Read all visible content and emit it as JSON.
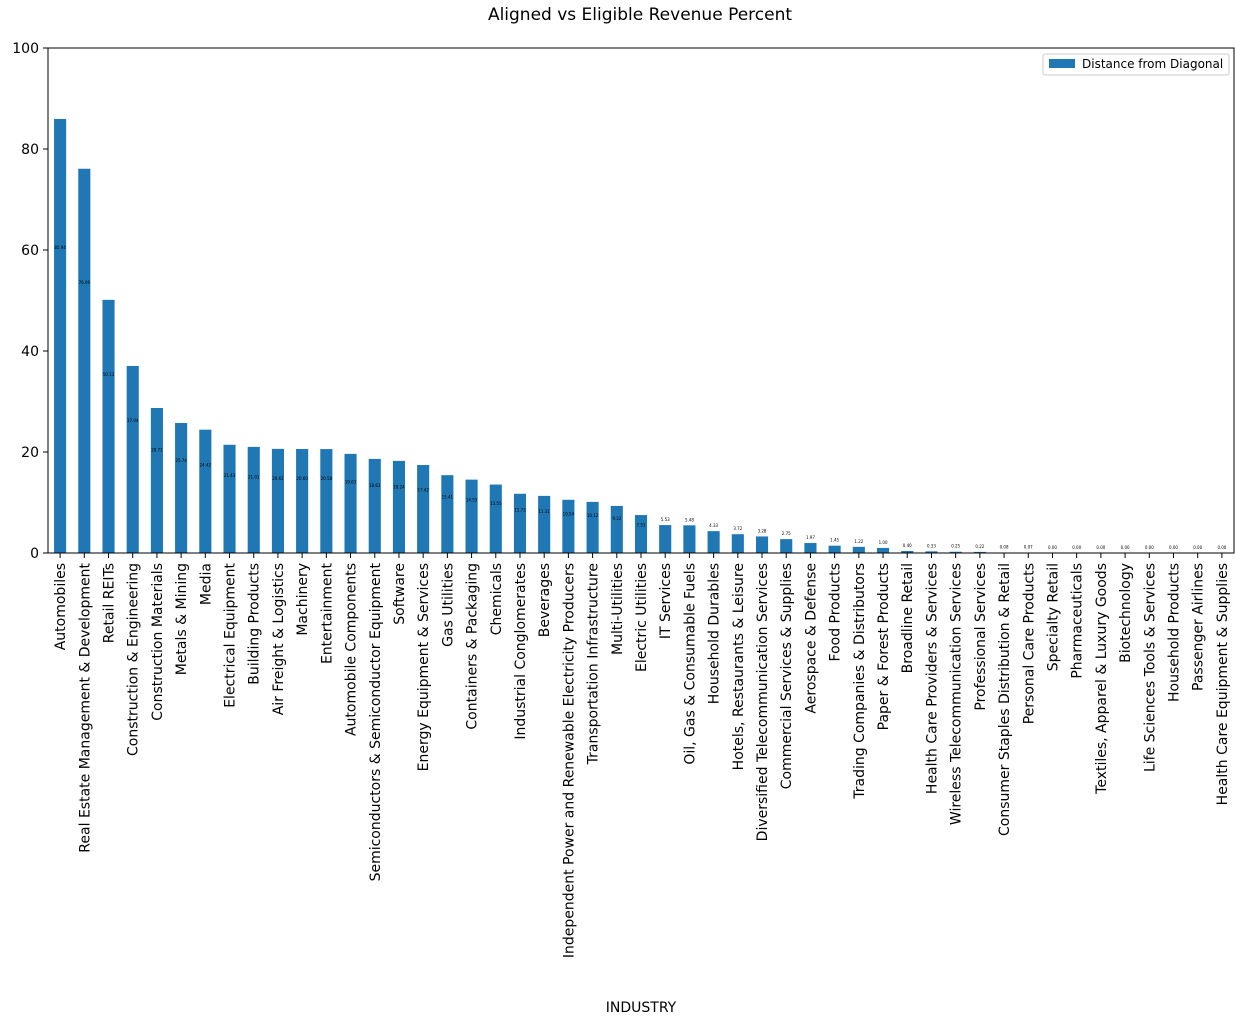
{
  "chart_data": {
    "type": "bar",
    "title": "Aligned vs Eligible Revenue Percent",
    "x_label": "INDUSTRY",
    "categories": [
      "Automobiles",
      "Real Estate Management & Development",
      "Retail REITs",
      "Construction & Engineering",
      "Construction Materials",
      "Metals & Mining",
      "Media",
      "Electrical Equipment",
      "Building Products",
      "Air Freight & Logistics",
      "Machinery",
      "Entertainment",
      "Automobile Components",
      "Semiconductors & Semiconductor Equipment",
      "Software",
      "Energy Equipment & Services",
      "Gas Utilities",
      "Containers & Packaging",
      "Chemicals",
      "Industrial Conglomerates",
      "Beverages",
      "Independent Power and Renewable Electricity Producers",
      "Transportation Infrastructure",
      "Multi-Utilities",
      "Electric Utilities",
      "IT Services",
      "Oil, Gas & Consumable Fuels",
      "Household Durables",
      "Hotels, Restaurants & Leisure",
      "Diversified Telecommunication Services",
      "Commercial Services & Supplies",
      "Aerospace & Defense",
      "Food Products",
      "Trading Companies & Distributors",
      "Paper & Forest Products",
      "Broadline Retail",
      "Health Care Providers & Services",
      "Wireless Telecommunication Services",
      "Professional Services",
      "Consumer Staples Distribution & Retail",
      "Personal Care Products",
      "Specialty Retail",
      "Pharmaceuticals",
      "Textiles, Apparel & Luxury Goods",
      "Biotechnology",
      "Life Sciences Tools & Services",
      "Household Products",
      "Passenger Airlines",
      "Health Care Equipment & Supplies"
    ],
    "series": [
      {
        "name": "Distance from Diagonal",
        "color": "#1f77b4",
        "values": [
          85.94,
          76.09,
          50.13,
          37.04,
          28.71,
          25.74,
          24.42,
          21.43,
          21.01,
          20.62,
          20.6,
          20.58,
          19.63,
          18.63,
          18.24,
          17.42,
          15.41,
          14.53,
          13.55,
          11.73,
          11.31,
          10.54,
          10.12,
          9.32,
          7.51,
          5.53,
          5.48,
          4.33,
          3.72,
          3.28,
          2.75,
          1.97,
          1.45,
          1.22,
          1,
          0.4,
          0.33,
          0.25,
          0.22,
          0.08,
          0.07,
          0,
          0,
          0,
          0,
          0,
          0,
          0,
          0
        ],
        "value_labels": [
          "85.94",
          "76.09",
          "50.13",
          "37.04",
          "28.71",
          "25.74",
          "24.42",
          "21.43",
          "21.01",
          "20.62",
          "20.60",
          "20.58",
          "19.63",
          "18.63",
          "18.24",
          "17.42",
          "15.41",
          "14.53",
          "13.55",
          "11.73",
          "11.31",
          "10.54",
          "10.12",
          "9.32",
          "7.51",
          "5.53",
          "5.48",
          "4.33",
          "3.72",
          "3.28",
          "2.75",
          "1.97",
          "1.45",
          "1.22",
          "1.00",
          "0.40",
          "0.33",
          "0.25",
          "0.22",
          "0.08",
          "0.07",
          "0.00",
          "0.00",
          "0.00",
          "0.00",
          "0.00",
          "0.00",
          "0.00",
          "0.00"
        ]
      }
    ],
    "ylim": [
      0,
      100
    ],
    "yticks": [
      0,
      20,
      40,
      60,
      80,
      100
    ],
    "grid": false,
    "legend": "upper right"
  }
}
